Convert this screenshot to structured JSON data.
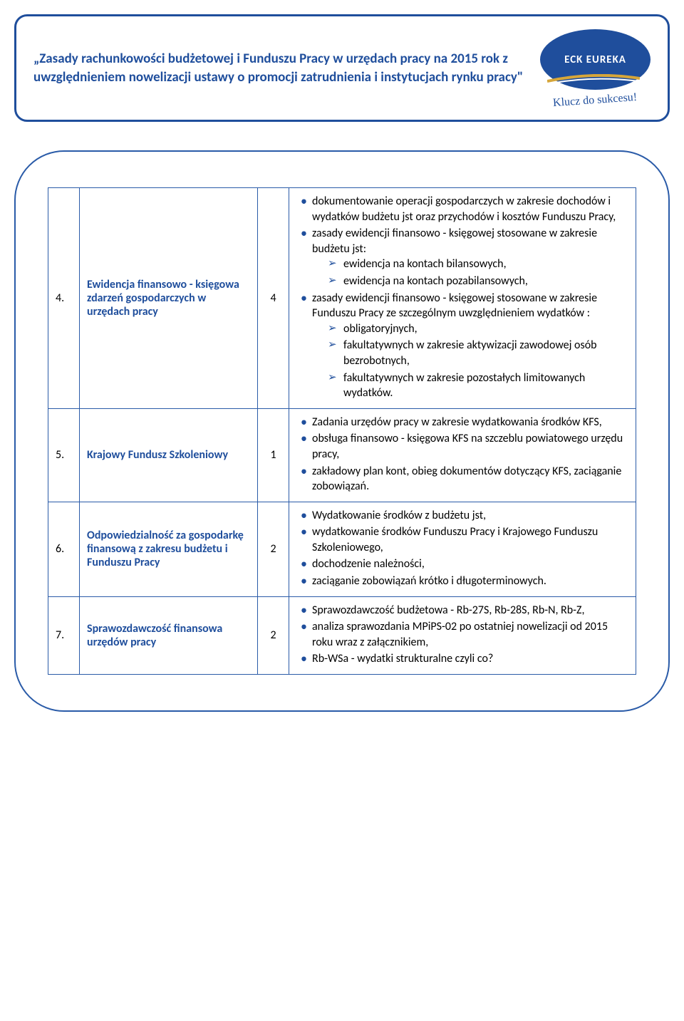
{
  "header": {
    "title": "„Zasady rachunkowości budżetowej i Funduszu Pracy w urzędach pracy na 2015 rok z uwzględnieniem nowelizacji ustawy o promocji zatrudnienia i instytucjach rynku pracy\"",
    "logo_text": "ECK EUREKA",
    "tagline": "Klucz do sukcesu!"
  },
  "colors": {
    "primary_blue": "#1f4e9c",
    "border_blue": "#2a5ba8",
    "swoosh_gold": "#d6a63a"
  },
  "rows": [
    {
      "num": "4.",
      "topic": "Ewidencja finansowo - księgowa zdarzeń gospodarczych w urzędach pracy",
      "hours": "4",
      "details": [
        {
          "type": "bullet",
          "text": "dokumentowanie operacji gospodarczych w zakresie dochodów i wydatków budżetu jst oraz przychodów i kosztów Funduszu Pracy,"
        },
        {
          "type": "bullet",
          "text": "zasady ewidencji finansowo - księgowej stosowane w zakresie budżetu jst:"
        },
        {
          "type": "arrow",
          "text": "ewidencja na kontach bilansowych,"
        },
        {
          "type": "arrow",
          "text": "ewidencja na kontach pozabilansowych,"
        },
        {
          "type": "bullet",
          "text": "zasady ewidencji finansowo - księgowej stosowane w zakresie Funduszu Pracy ze szczególnym uwzględnieniem wydatków :"
        },
        {
          "type": "arrow",
          "text": "obligatoryjnych,"
        },
        {
          "type": "arrow",
          "text": "fakultatywnych w zakresie aktywizacji zawodowej osób bezrobotnych,"
        },
        {
          "type": "arrow",
          "text": "fakultatywnych w zakresie pozostałych limitowanych wydatków."
        }
      ]
    },
    {
      "num": "5.",
      "topic": "Krajowy Fundusz Szkoleniowy",
      "hours": "1",
      "details": [
        {
          "type": "bullet",
          "text": "Zadania urzędów pracy w zakresie wydatkowania środków KFS,"
        },
        {
          "type": "bullet",
          "text": "obsługa finansowo - księgowa KFS na szczeblu powiatowego urzędu pracy,"
        },
        {
          "type": "bullet",
          "text": "zakładowy plan kont, obieg dokumentów dotyczący KFS, zaciąganie zobowiązań."
        }
      ]
    },
    {
      "num": "6.",
      "topic": "Odpowiedzialność za gospodarkę finansową z zakresu budżetu i Funduszu Pracy",
      "hours": "2",
      "details": [
        {
          "type": "bullet",
          "text": "Wydatkowanie środków z budżetu jst,"
        },
        {
          "type": "bullet",
          "text": "wydatkowanie środków Funduszu Pracy i Krajowego Funduszu Szkoleniowego,"
        },
        {
          "type": "bullet",
          "text": "dochodzenie należności,"
        },
        {
          "type": "bullet",
          "text": "zaciąganie zobowiązań krótko i długoterminowych."
        }
      ]
    },
    {
      "num": "7.",
      "topic": "Sprawozdawczość finansowa urzędów pracy",
      "hours": "2",
      "details": [
        {
          "type": "bullet",
          "text": "Sprawozdawczość budżetowa - Rb-27S, Rb-28S, Rb-N, Rb-Z,"
        },
        {
          "type": "bullet",
          "text": "analiza sprawozdania MPiPS-02 po ostatniej nowelizacji od 2015 roku wraz z załącznikiem,"
        },
        {
          "type": "bullet",
          "text": "Rb-WSa - wydatki strukturalne czyli co?"
        }
      ]
    }
  ]
}
